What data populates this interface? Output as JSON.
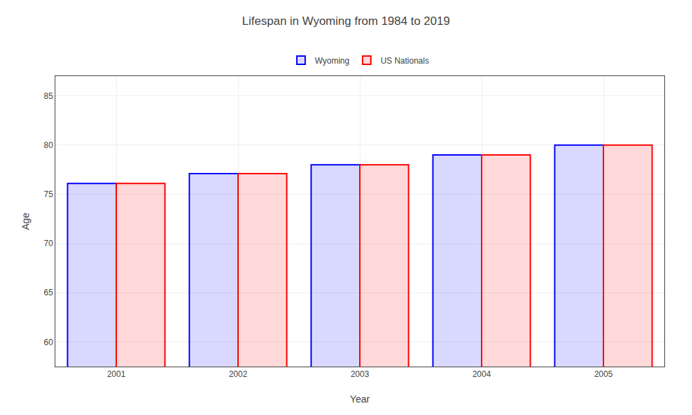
{
  "chart_data": {
    "type": "bar",
    "title": "Lifespan in Wyoming from 1984 to 2019",
    "xlabel": "Year",
    "ylabel": "Age",
    "categories": [
      "2001",
      "2002",
      "2003",
      "2004",
      "2005"
    ],
    "series": [
      {
        "name": "Wyoming",
        "color": "#0000ff",
        "values": [
          76.1,
          77.1,
          78.0,
          79.0,
          80.0
        ]
      },
      {
        "name": "US Nationals",
        "color": "#ff0000",
        "values": [
          76.1,
          77.1,
          78.0,
          79.0,
          80.0
        ]
      }
    ],
    "ylim": [
      57.5,
      87
    ],
    "yticks": [
      60,
      65,
      70,
      75,
      80,
      85
    ],
    "grid": true,
    "legend": "top"
  }
}
